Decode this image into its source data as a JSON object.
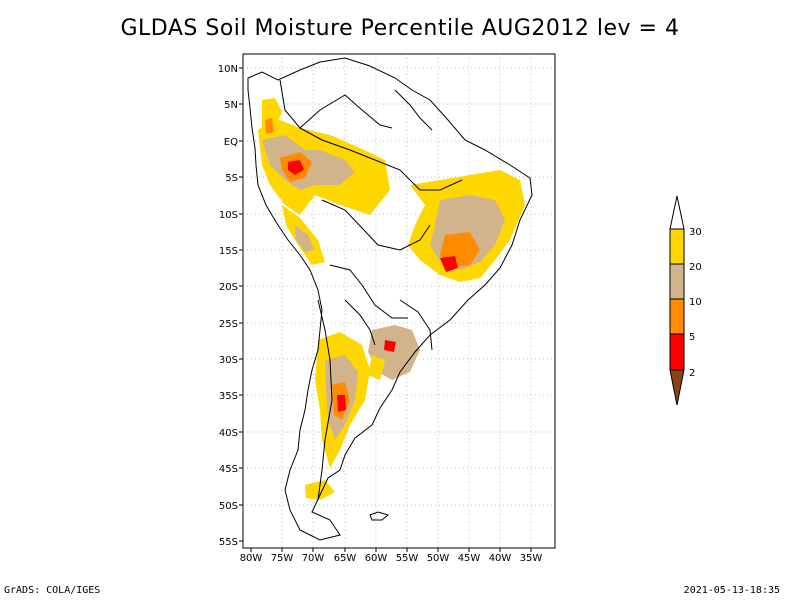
{
  "title": "GLDAS Soil Moisture Percentile AUG2012 lev = 4",
  "footer": {
    "left": "GrADS: COLA/IGES",
    "right": "2021-05-13-18:35"
  },
  "map": {
    "lon_range": [
      -80,
      -30
    ],
    "lat_range": [
      -55,
      10
    ],
    "x_ticks": [
      "80W",
      "75W",
      "70W",
      "65W",
      "60W",
      "55W",
      "50W",
      "45W",
      "40W",
      "35W"
    ],
    "y_ticks": [
      "10N",
      "5N",
      "EQ",
      "5S",
      "10S",
      "15S",
      "20S",
      "25S",
      "30S",
      "35S",
      "40S",
      "45S",
      "50S",
      "55S"
    ],
    "grid": true
  },
  "colorbar": {
    "labels": [
      "30",
      "20",
      "10",
      "5",
      "2"
    ],
    "colors": {
      "above30": "#ffffff",
      "20_30": "#ffd700",
      "10_20": "#d2b48c",
      "5_10": "#ff8c00",
      "2_5": "#ff0000",
      "below2": "#8b4513"
    }
  }
}
